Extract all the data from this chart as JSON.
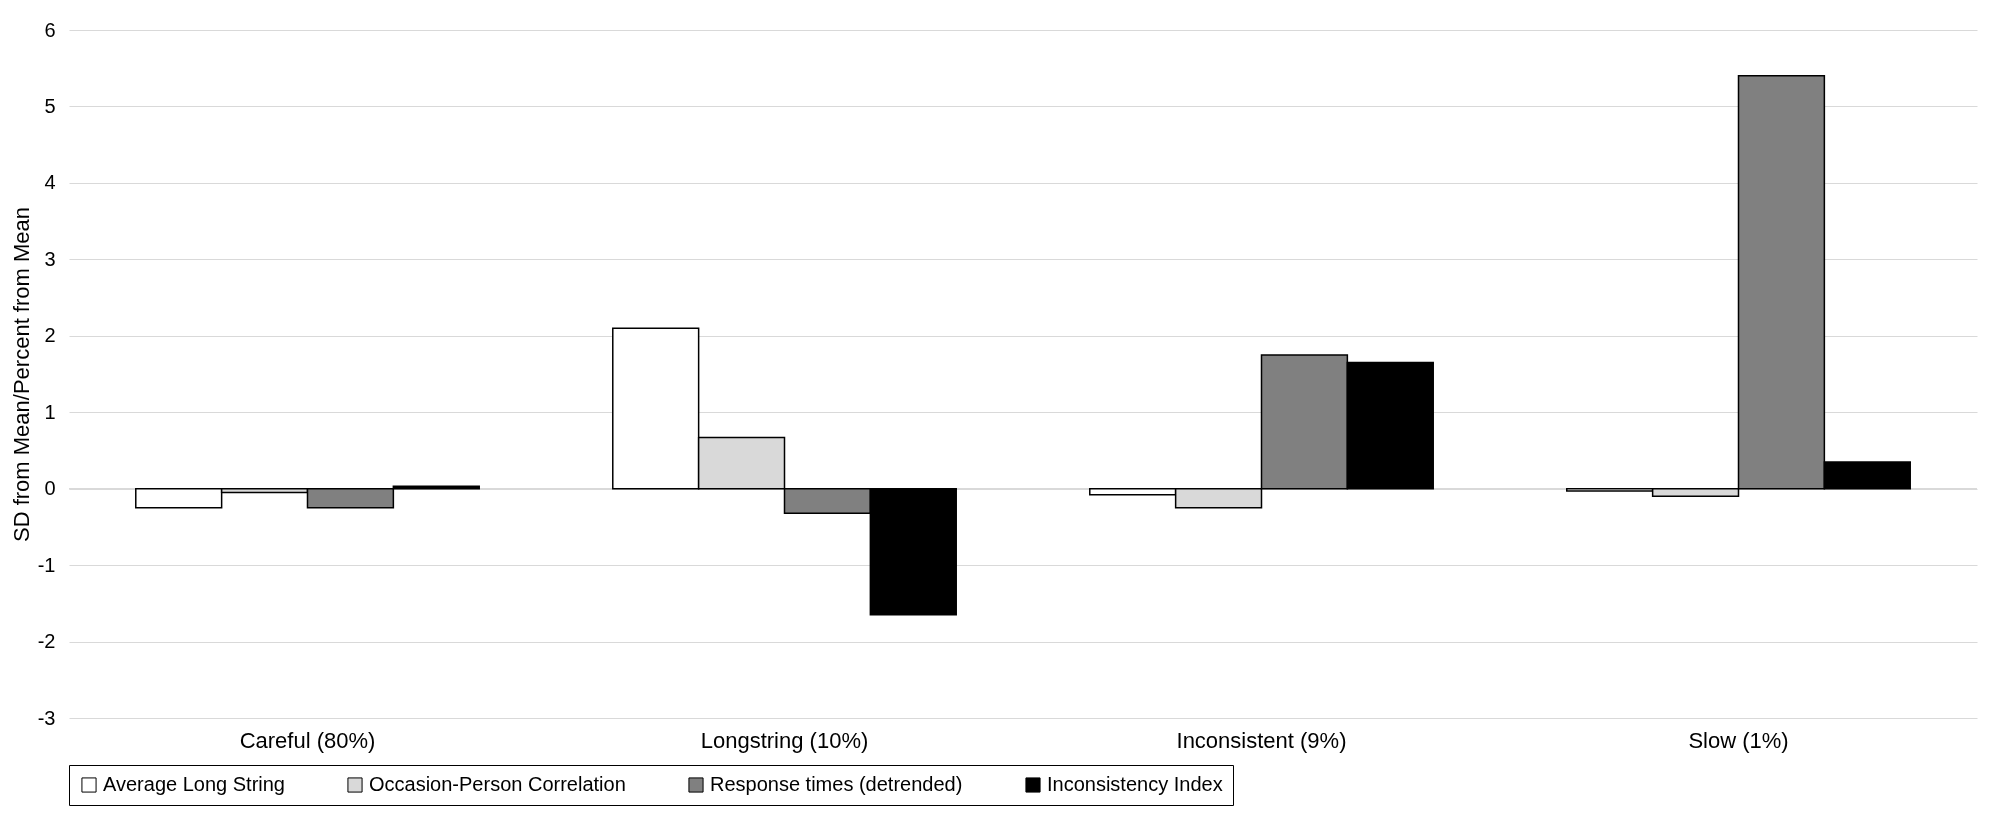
{
  "chart_data": {
    "type": "bar",
    "ylabel": "SD from Mean/Percent from Mean",
    "categories": [
      "Careful (80%)",
      "Longstring (10%)",
      "Inconsistent (9%)",
      "Slow (1%)"
    ],
    "series": [
      {
        "name": "Average Long String",
        "color": "#ffffff",
        "values": [
          -0.25,
          2.1,
          -0.08,
          -0.03
        ]
      },
      {
        "name": "Occasion-Person Correlation",
        "color": "#d9d9d9",
        "values": [
          -0.05,
          0.67,
          -0.25,
          -0.1
        ]
      },
      {
        "name": "Response times (detrended)",
        "color": "#808080",
        "values": [
          -0.25,
          -0.32,
          1.75,
          5.4
        ]
      },
      {
        "name": "Inconsistency Index",
        "color": "#000000",
        "values": [
          0.03,
          -1.65,
          1.65,
          0.35
        ]
      }
    ],
    "ylim": [
      -3,
      6
    ],
    "yticks": [
      -3,
      -2,
      -1,
      0,
      1,
      2,
      3,
      4,
      5,
      6
    ],
    "grid": "y",
    "legend": "bottom"
  }
}
